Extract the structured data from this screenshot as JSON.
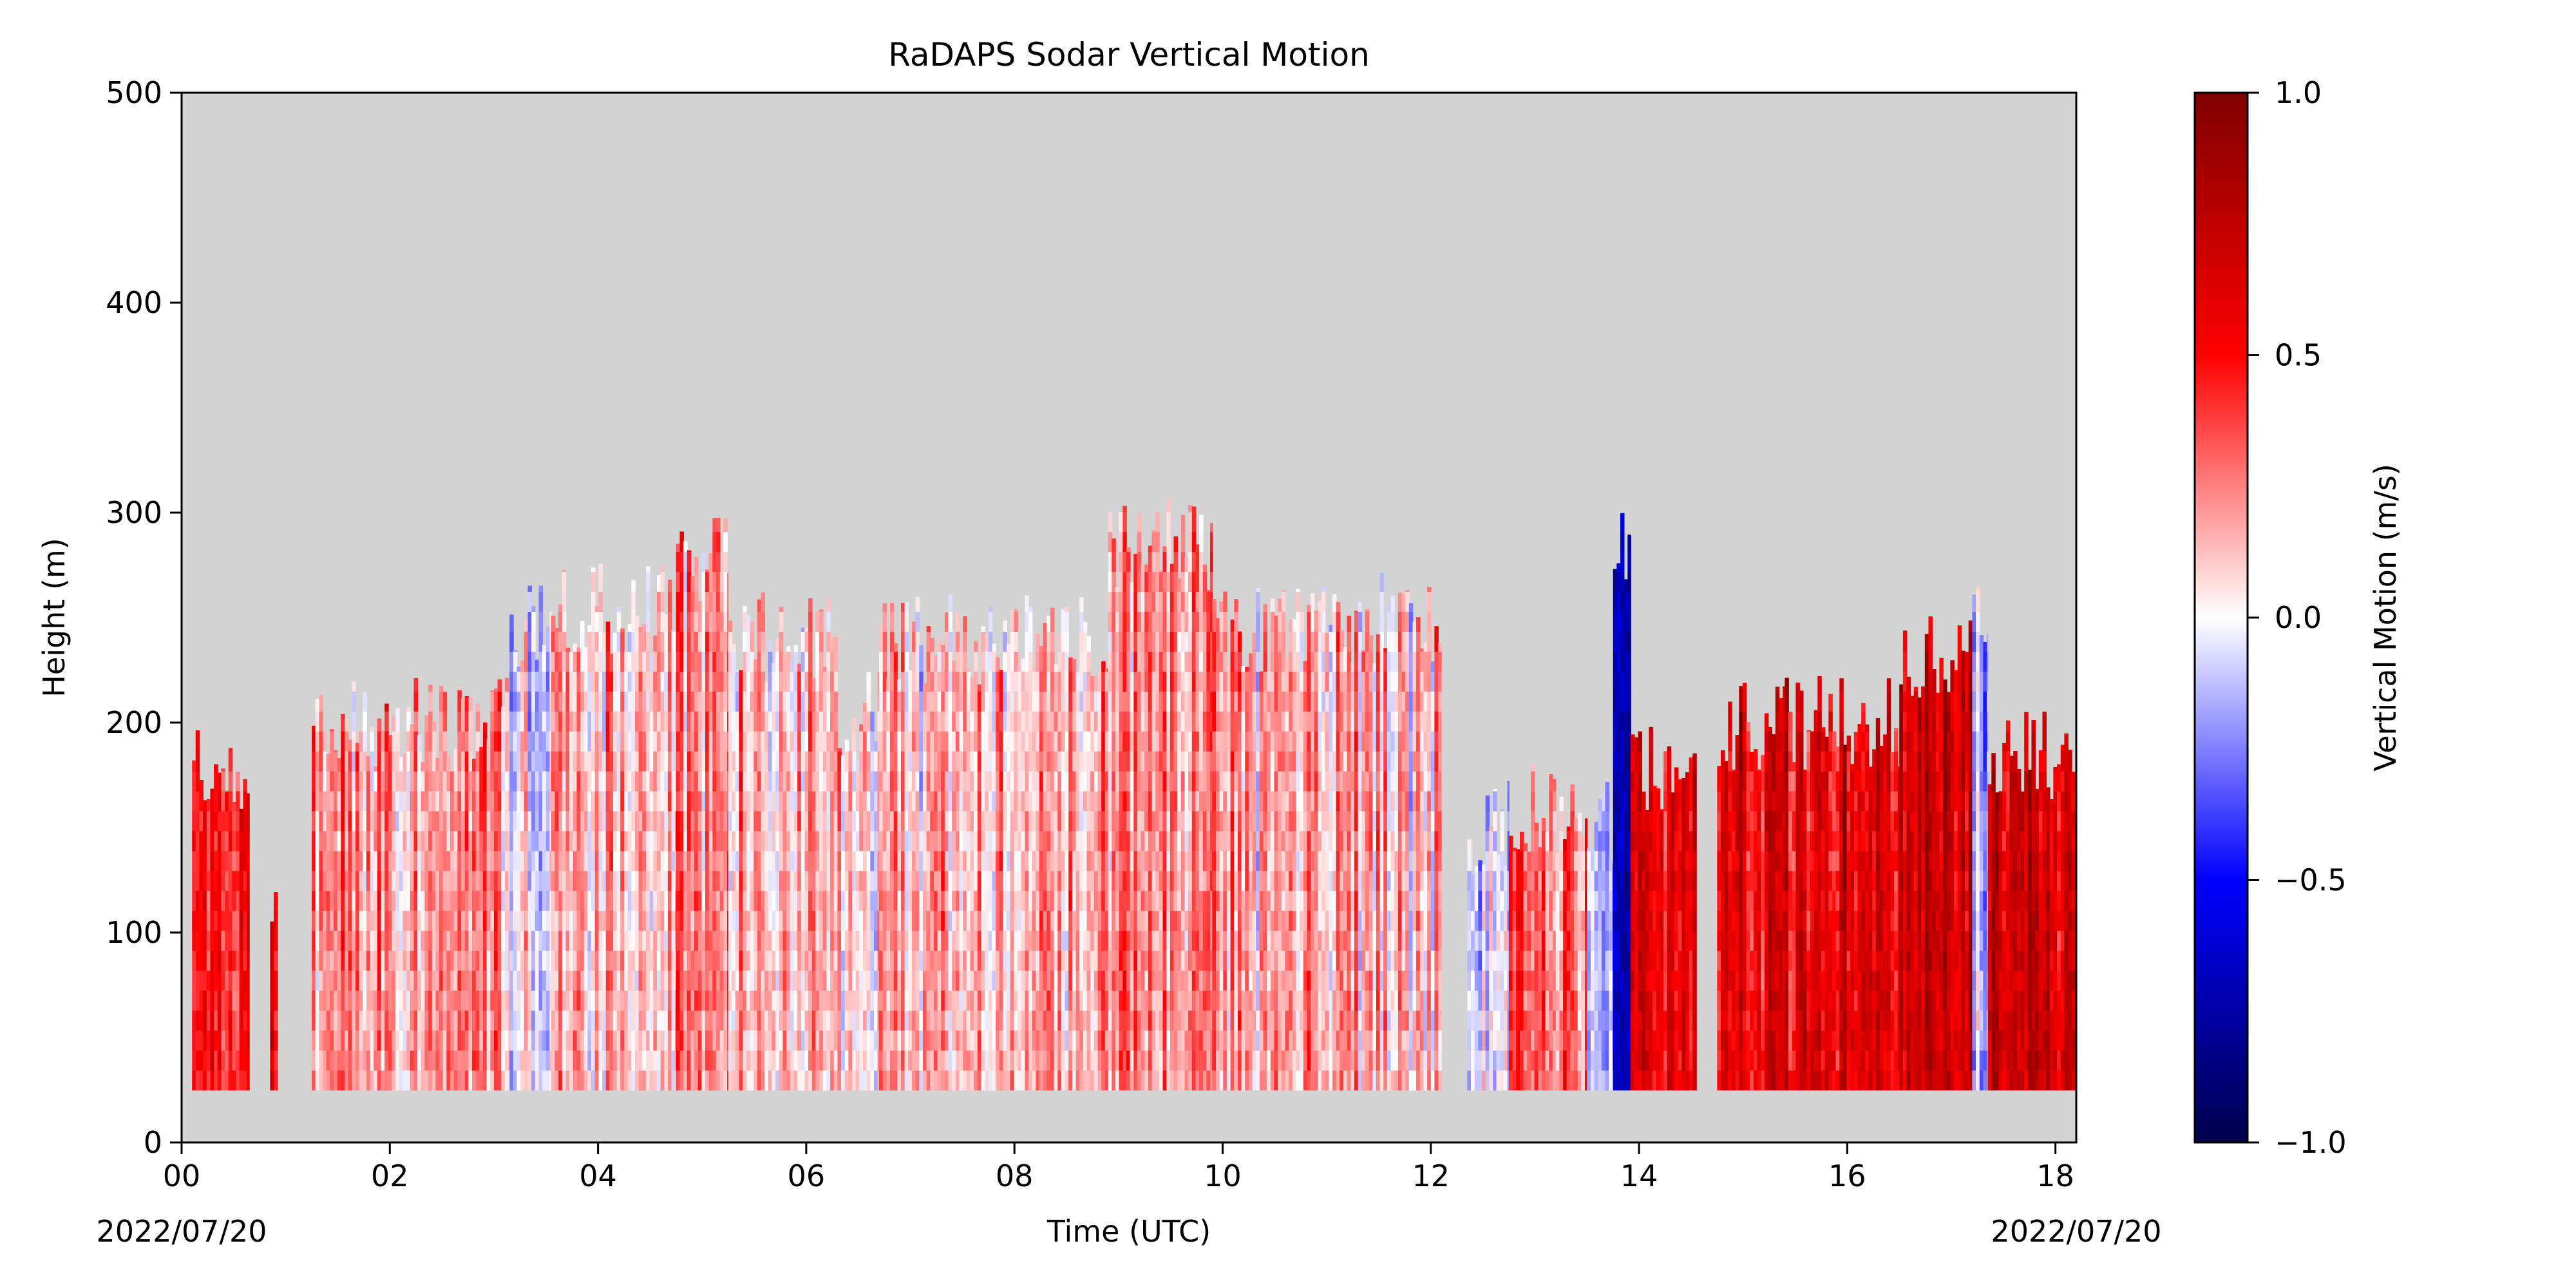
{
  "chart_data": {
    "type": "heatmap",
    "title": "RaDAPS Sodar Vertical Motion",
    "xlabel": "Time (UTC)",
    "ylabel": "Height (m)",
    "xlim": [
      0,
      18.2
    ],
    "ylim": [
      0,
      500
    ],
    "x_ticks": [
      0,
      2,
      4,
      6,
      8,
      10,
      12,
      14,
      16,
      18
    ],
    "x_tick_labels": [
      "00",
      "02",
      "04",
      "06",
      "08",
      "10",
      "12",
      "14",
      "16",
      "18"
    ],
    "y_ticks": [
      0,
      100,
      200,
      300,
      400,
      500
    ],
    "y_tick_labels": [
      "0",
      "100",
      "200",
      "300",
      "400",
      "500"
    ],
    "date_start_label": "2022/07/20",
    "date_end_label": "2022/07/20",
    "background_color": "#d3d3d3",
    "grid": false,
    "min_height_m": 25,
    "colorbar": {
      "label": "Vertical Motion (m/s)",
      "colormap": "seismic",
      "range": [
        -1.0,
        1.0
      ],
      "ticks": [
        1.0,
        0.5,
        0.0,
        -0.5,
        -1.0
      ],
      "tick_labels": [
        "1.0",
        "0.5",
        "0.0",
        "−0.5",
        "−1.0"
      ],
      "colors": [
        "#00004c",
        "#0000ff",
        "#ffffff",
        "#ff0000",
        "#7f0000"
      ]
    },
    "profiles": [
      {
        "t0": 0.1,
        "t1": 0.65,
        "top": 175,
        "mean": 0.45
      },
      {
        "t0": 0.85,
        "t1": 0.92,
        "top": 115,
        "mean": 0.5
      },
      {
        "t0": 1.25,
        "t1": 3.15,
        "top": 200,
        "mean": 0.2
      },
      {
        "t0": 3.15,
        "t1": 3.55,
        "top": 245,
        "mean": -0.05
      },
      {
        "t0": 3.55,
        "t1": 4.75,
        "top": 255,
        "mean": 0.15
      },
      {
        "t0": 4.75,
        "t1": 5.25,
        "top": 280,
        "mean": 0.25
      },
      {
        "t0": 5.25,
        "t1": 6.3,
        "top": 240,
        "mean": 0.12
      },
      {
        "t0": 6.3,
        "t1": 6.7,
        "top": 205,
        "mean": 0.08
      },
      {
        "t0": 6.7,
        "t1": 8.9,
        "top": 240,
        "mean": 0.15
      },
      {
        "t0": 8.9,
        "t1": 9.9,
        "top": 285,
        "mean": 0.25
      },
      {
        "t0": 9.9,
        "t1": 11.3,
        "top": 245,
        "mean": 0.2
      },
      {
        "t0": 11.3,
        "t1": 12.1,
        "top": 250,
        "mean": 0.12
      },
      {
        "t0": 12.35,
        "t1": 12.75,
        "top": 150,
        "mean": -0.05
      },
      {
        "t0": 12.75,
        "t1": 13.2,
        "top": 160,
        "mean": 0.35
      },
      {
        "t0": 13.2,
        "t1": 13.5,
        "top": 155,
        "mean": 0.3
      },
      {
        "t0": 13.5,
        "t1": 13.75,
        "top": 150,
        "mean": -0.2
      },
      {
        "t0": 13.75,
        "t1": 13.92,
        "top": 280,
        "mean": -0.6
      },
      {
        "t0": 13.92,
        "t1": 14.55,
        "top": 180,
        "mean": 0.55
      },
      {
        "t0": 14.75,
        "t1": 15.4,
        "top": 200,
        "mean": 0.6
      },
      {
        "t0": 15.4,
        "t1": 16.5,
        "top": 200,
        "mean": 0.6
      },
      {
        "t0": 16.5,
        "t1": 17.2,
        "top": 230,
        "mean": 0.7
      },
      {
        "t0": 17.2,
        "t1": 17.35,
        "top": 250,
        "mean": -0.15
      },
      {
        "t0": 17.35,
        "t1": 18.2,
        "top": 185,
        "mean": 0.7
      }
    ]
  }
}
